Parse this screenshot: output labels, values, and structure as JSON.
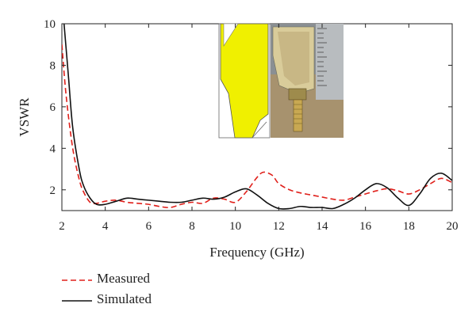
{
  "chart_data": {
    "type": "line",
    "xlabel": "Frequency (GHz)",
    "ylabel": "VSWR",
    "xlim": [
      2,
      20
    ],
    "ylim": [
      1,
      10
    ],
    "xticks": [
      "2",
      "4",
      "6",
      "8",
      "10",
      "12",
      "14",
      "16",
      "18",
      "20"
    ],
    "yticks": [
      "2",
      "4",
      "6",
      "8",
      "10"
    ],
    "grid": false,
    "legend_position": "bottom-left",
    "series": [
      {
        "name": "Measured",
        "color": "#e0201b",
        "style": "dashed",
        "x": [
          2.0,
          2.2,
          2.5,
          2.8,
          3.0,
          3.3,
          3.6,
          4.0,
          4.5,
          5.0,
          5.5,
          6.0,
          6.5,
          7.0,
          7.5,
          8.0,
          8.5,
          9.0,
          9.5,
          10.0,
          10.5,
          11.0,
          11.3,
          11.7,
          12.0,
          12.5,
          13.0,
          13.5,
          14.0,
          14.5,
          15.0,
          15.5,
          16.0,
          16.5,
          17.0,
          17.5,
          18.0,
          18.5,
          19.0,
          19.5,
          20.0
        ],
        "y": [
          9.0,
          6.5,
          4.0,
          2.5,
          1.9,
          1.4,
          1.35,
          1.45,
          1.5,
          1.4,
          1.35,
          1.3,
          1.2,
          1.15,
          1.3,
          1.4,
          1.35,
          1.6,
          1.55,
          1.4,
          1.9,
          2.6,
          2.85,
          2.7,
          2.3,
          2.0,
          1.85,
          1.75,
          1.65,
          1.55,
          1.5,
          1.65,
          1.8,
          1.95,
          2.05,
          1.95,
          1.8,
          2.0,
          2.3,
          2.55,
          2.35
        ]
      },
      {
        "name": "Simulated",
        "color": "#111111",
        "style": "solid",
        "x": [
          2.1,
          2.3,
          2.5,
          2.8,
          3.0,
          3.3,
          3.6,
          4.0,
          4.5,
          5.0,
          5.5,
          6.0,
          6.5,
          7.0,
          7.5,
          8.0,
          8.5,
          9.0,
          9.5,
          10.0,
          10.5,
          11.0,
          11.5,
          12.0,
          12.5,
          13.0,
          13.5,
          14.0,
          14.5,
          15.0,
          15.5,
          16.0,
          16.5,
          17.0,
          17.5,
          18.0,
          18.5,
          19.0,
          19.5,
          20.0
        ],
        "y": [
          10.0,
          7.5,
          5.0,
          3.0,
          2.2,
          1.6,
          1.3,
          1.3,
          1.45,
          1.6,
          1.55,
          1.5,
          1.45,
          1.4,
          1.4,
          1.5,
          1.6,
          1.55,
          1.65,
          1.9,
          2.05,
          1.75,
          1.35,
          1.1,
          1.1,
          1.2,
          1.15,
          1.15,
          1.1,
          1.3,
          1.6,
          2.0,
          2.3,
          2.1,
          1.6,
          1.25,
          1.8,
          2.55,
          2.8,
          2.45
        ]
      }
    ]
  }
}
